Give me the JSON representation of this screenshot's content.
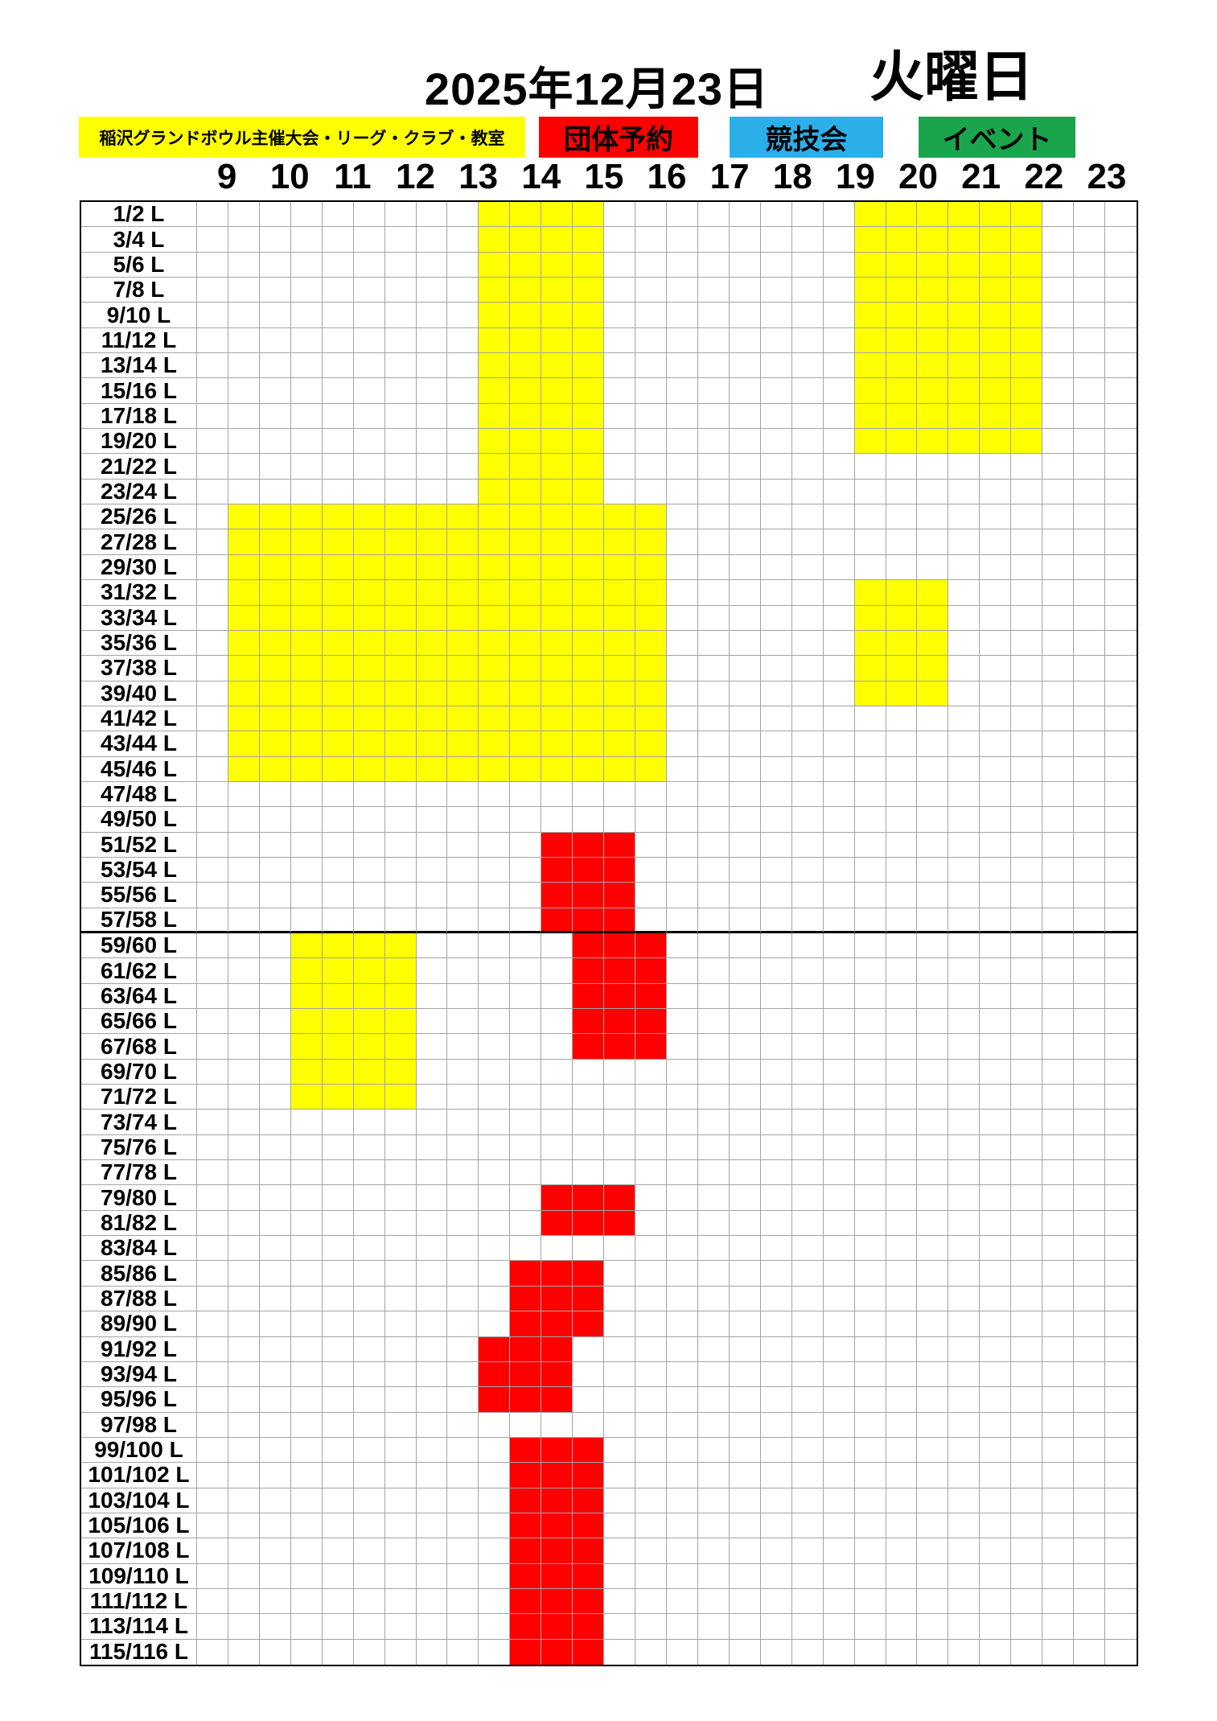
{
  "header": {
    "date": "2025年12月23日",
    "weekday": "火曜日"
  },
  "legend": {
    "items": [
      {
        "id": "league",
        "label": "稲沢グランドボウル主催大会・リーグ・クラブ・教室",
        "color": "#ffff00",
        "text_color": "#000000"
      },
      {
        "id": "group",
        "label": "団体予約",
        "color": "#ff0000",
        "text_color": "#000000"
      },
      {
        "id": "competition",
        "label": "競技会",
        "color": "#2bafe8",
        "text_color": "#000000"
      },
      {
        "id": "event",
        "label": "イベント",
        "color": "#1aa54c",
        "text_color": "#000000"
      }
    ]
  },
  "time_axis": {
    "hour_labels": [
      "9",
      "10",
      "11",
      "12",
      "13",
      "14",
      "15",
      "16",
      "17",
      "18",
      "19",
      "20",
      "21",
      "22",
      "23"
    ],
    "grid_start": "8:30",
    "grid_end": "23:30",
    "slot_minutes": 30
  },
  "lanes": [
    "1/2 L",
    "3/4 L",
    "5/6 L",
    "7/8 L",
    "9/10 L",
    "11/12 L",
    "13/14 L",
    "15/16 L",
    "17/18 L",
    "19/20 L",
    "21/22 L",
    "23/24 L",
    "25/26 L",
    "27/28 L",
    "29/30 L",
    "31/32 L",
    "33/34 L",
    "35/36 L",
    "37/38 L",
    "39/40 L",
    "41/42 L",
    "43/44 L",
    "45/46 L",
    "47/48 L",
    "49/50 L",
    "51/52 L",
    "53/54 L",
    "55/56 L",
    "57/58 L",
    "59/60 L",
    "61/62 L",
    "63/64 L",
    "65/66 L",
    "67/68 L",
    "69/70 L",
    "71/72 L",
    "73/74 L",
    "75/76 L",
    "77/78 L",
    "79/80 L",
    "81/82 L",
    "83/84 L",
    "85/86 L",
    "87/88 L",
    "89/90 L",
    "91/92 L",
    "93/94 L",
    "95/96 L",
    "97/98 L",
    "99/100 L",
    "101/102 L",
    "103/104 L",
    "105/106 L",
    "107/108 L",
    "109/110 L",
    "111/112 L",
    "113/114 L",
    "115/116 L"
  ],
  "divider_after_lane": "57/58 L",
  "blocks": [
    {
      "category": "league",
      "lane_from": "1/2 L",
      "lane_to": "23/24 L",
      "start": "13:00",
      "end": "15:00"
    },
    {
      "category": "league",
      "lane_from": "1/2 L",
      "lane_to": "19/20 L",
      "start": "19:00",
      "end": "22:00"
    },
    {
      "category": "league",
      "lane_from": "25/26 L",
      "lane_to": "45/46 L",
      "start": "9:00",
      "end": "16:00"
    },
    {
      "category": "league",
      "lane_from": "31/32 L",
      "lane_to": "39/40 L",
      "start": "19:00",
      "end": "20:30"
    },
    {
      "category": "group",
      "lane_from": "51/52 L",
      "lane_to": "57/58 L",
      "start": "14:00",
      "end": "15:30"
    },
    {
      "category": "group",
      "lane_from": "59/60 L",
      "lane_to": "67/68 L",
      "start": "14:30",
      "end": "16:00"
    },
    {
      "category": "league",
      "lane_from": "59/60 L",
      "lane_to": "71/72 L",
      "start": "10:00",
      "end": "12:00"
    },
    {
      "category": "group",
      "lane_from": "79/80 L",
      "lane_to": "81/82 L",
      "start": "14:00",
      "end": "15:30"
    },
    {
      "category": "group",
      "lane_from": "85/86 L",
      "lane_to": "89/90 L",
      "start": "13:30",
      "end": "15:00"
    },
    {
      "category": "group",
      "lane_from": "91/92 L",
      "lane_to": "95/96 L",
      "start": "13:00",
      "end": "14:30"
    },
    {
      "category": "group",
      "lane_from": "99/100 L",
      "lane_to": "115/116 L",
      "start": "13:30",
      "end": "15:00"
    }
  ],
  "colors": {
    "league": "#ffff00",
    "group": "#ff0000",
    "competition": "#2bafe8",
    "event": "#1aa54c"
  }
}
